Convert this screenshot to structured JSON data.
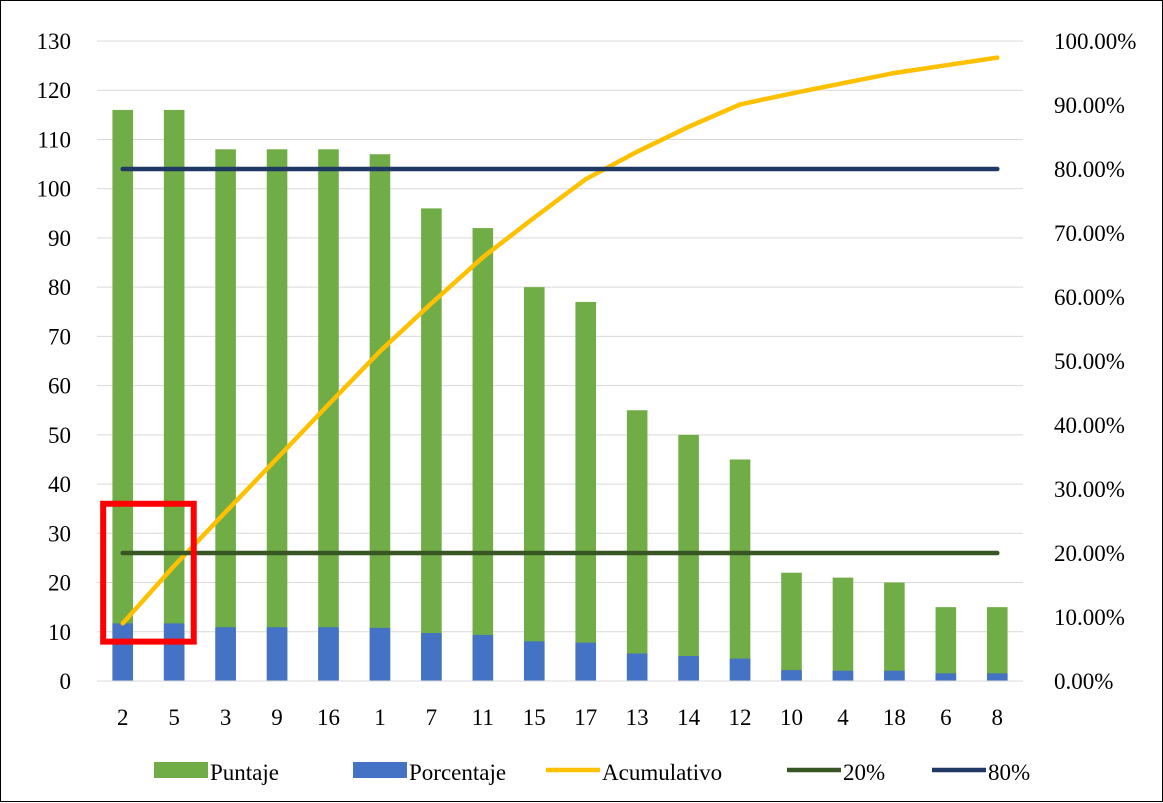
{
  "chart_data": {
    "type": "bar",
    "categories": [
      "2",
      "5",
      "3",
      "9",
      "16",
      "1",
      "7",
      "11",
      "15",
      "17",
      "13",
      "14",
      "12",
      "10",
      "4",
      "18",
      "6",
      "8"
    ],
    "series": [
      {
        "name": "Puntaje",
        "kind": "bar",
        "axis": "left",
        "color": "#70AD47",
        "values": [
          116,
          116,
          108,
          108,
          108,
          107,
          96,
          92,
          80,
          77,
          55,
          50,
          45,
          22,
          21,
          20,
          15,
          15
        ]
      },
      {
        "name": "Porcentaje",
        "kind": "bar",
        "axis": "right",
        "color": "#4472C4",
        "values": [
          9.0,
          9.0,
          8.4,
          8.4,
          8.4,
          8.3,
          7.5,
          7.2,
          6.2,
          6.0,
          4.3,
          3.9,
          3.5,
          1.7,
          1.6,
          1.6,
          1.2,
          1.2
        ]
      },
      {
        "name": "Acumulativo",
        "kind": "line",
        "axis": "right",
        "color": "#FFC000",
        "values": [
          9.0,
          18.0,
          26.4,
          34.8,
          43.2,
          51.5,
          59.0,
          66.2,
          72.4,
          78.4,
          82.7,
          86.6,
          90.1,
          91.8,
          93.4,
          95.0,
          96.2,
          97.4
        ]
      },
      {
        "name": "20%",
        "kind": "line",
        "axis": "right",
        "color": "#375623",
        "values": [
          20,
          20,
          20,
          20,
          20,
          20,
          20,
          20,
          20,
          20,
          20,
          20,
          20,
          20,
          20,
          20,
          20,
          20
        ]
      },
      {
        "name": "80%",
        "kind": "line",
        "axis": "right",
        "color": "#203864",
        "values": [
          80,
          80,
          80,
          80,
          80,
          80,
          80,
          80,
          80,
          80,
          80,
          80,
          80,
          80,
          80,
          80,
          80,
          80
        ]
      }
    ],
    "y_left": {
      "min": 0,
      "max": 130,
      "step": 10
    },
    "y_right": {
      "min": 0,
      "max": 100,
      "step": 10,
      "tick_labels": [
        "0.00%",
        "10.00%",
        "20.00%",
        "30.00%",
        "40.00%",
        "50.00%",
        "60.00%",
        "70.00%",
        "80.00%",
        "90.00%",
        "100.00%"
      ]
    },
    "grid": true,
    "legend_position": "bottom",
    "annotation": {
      "type": "highlight-box",
      "color": "#FF0000",
      "categories": [
        "2",
        "5"
      ],
      "y_range": [
        8,
        36
      ]
    }
  }
}
